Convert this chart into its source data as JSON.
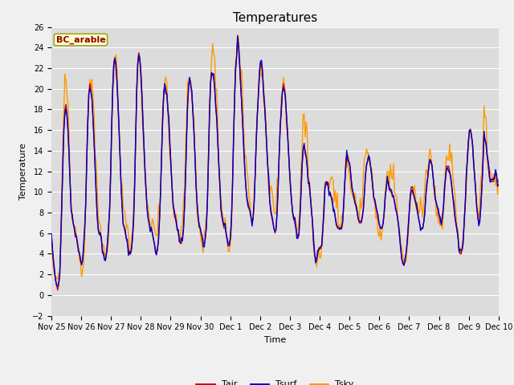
{
  "title": "Temperatures",
  "xlabel": "Time",
  "ylabel": "Temperature",
  "ylim": [
    -2,
    26
  ],
  "yticks": [
    -2,
    0,
    2,
    4,
    6,
    8,
    10,
    12,
    14,
    16,
    18,
    20,
    22,
    24,
    26
  ],
  "xtick_labels": [
    "Nov 25",
    "Nov 26",
    "Nov 27",
    "Nov 28",
    "Nov 29",
    "Nov 30",
    "Dec 1",
    "Dec 2",
    "Dec 3",
    "Dec 4",
    "Dec 5",
    "Dec 6",
    "Dec 7",
    "Dec 8",
    "Dec 9",
    "Dec 10"
  ],
  "legend_entries": [
    "Tair",
    "Tsurf",
    "Tsky"
  ],
  "legend_colors": [
    "#cc0000",
    "#0000cc",
    "#ff9900"
  ],
  "site_label": "BC_arable",
  "site_label_color": "#8b0000",
  "site_label_bg": "#ffffcc",
  "site_label_edge": "#999900",
  "plot_bg": "#dcdcdc",
  "fig_bg": "#f0f0f0",
  "grid_color": "#ffffff",
  "line_width": 1.0,
  "title_fontsize": 11,
  "axis_label_fontsize": 8,
  "tick_fontsize": 7,
  "legend_fontsize": 8,
  "site_fontsize": 8,
  "tair": [
    5.8,
    4.5,
    3.2,
    2.1,
    1.5,
    1.0,
    0.5,
    1.0,
    2.0,
    5.0,
    9.0,
    13.0,
    16.0,
    18.0,
    18.5,
    17.5,
    16.0,
    13.5,
    11.0,
    8.5,
    7.5,
    7.0,
    6.5,
    6.0,
    5.8,
    5.0,
    4.5,
    4.0,
    3.5,
    3.0,
    3.5,
    4.5,
    6.5,
    9.0,
    13.0,
    17.0,
    19.5,
    20.5,
    20.0,
    19.0,
    17.0,
    15.0,
    12.5,
    10.0,
    8.0,
    6.5,
    6.0,
    5.8,
    5.5,
    4.5,
    4.0,
    3.5,
    3.5,
    4.0,
    5.0,
    6.5,
    8.5,
    12.0,
    16.5,
    20.0,
    22.5,
    23.0,
    22.5,
    21.0,
    18.5,
    16.0,
    13.5,
    10.5,
    8.5,
    7.0,
    6.5,
    6.0,
    5.5,
    5.0,
    4.5,
    4.0,
    4.0,
    4.5,
    5.5,
    7.5,
    10.5,
    15.0,
    19.5,
    22.5,
    23.5,
    23.0,
    21.5,
    19.5,
    17.0,
    14.5,
    12.0,
    10.0,
    8.5,
    7.5,
    7.0,
    6.5,
    6.5,
    6.0,
    5.5,
    5.0,
    4.5,
    4.0,
    4.5,
    5.5,
    7.5,
    10.0,
    13.5,
    17.0,
    19.5,
    20.5,
    20.0,
    19.5,
    18.0,
    16.5,
    14.5,
    12.5,
    10.5,
    9.0,
    8.0,
    7.5,
    7.0,
    6.5,
    6.0,
    5.5,
    5.0,
    5.0,
    5.5,
    6.5,
    8.5,
    11.5,
    15.5,
    18.5,
    20.5,
    21.0,
    20.5,
    19.5,
    18.0,
    16.0,
    13.5,
    11.0,
    9.0,
    7.5,
    7.0,
    6.5,
    6.0,
    5.5,
    5.0,
    5.0,
    5.5,
    6.5,
    9.0,
    13.0,
    17.5,
    20.5,
    21.5,
    21.5,
    21.0,
    20.0,
    18.5,
    17.0,
    15.0,
    12.5,
    10.5,
    8.5,
    7.5,
    7.0,
    6.5,
    6.5,
    6.0,
    5.5,
    5.0,
    5.0,
    5.5,
    7.0,
    10.0,
    14.5,
    18.5,
    21.5,
    23.0,
    24.5,
    24.0,
    22.5,
    20.5,
    18.5,
    16.5,
    14.0,
    12.0,
    10.5,
    9.5,
    9.0,
    8.5,
    8.0,
    7.5,
    7.0,
    7.5,
    9.0,
    12.0,
    15.0,
    17.5,
    19.5,
    21.5,
    22.5,
    22.5,
    21.5,
    20.0,
    18.5,
    16.5,
    14.5,
    12.5,
    10.5,
    9.0,
    8.0,
    7.5,
    7.0,
    6.5,
    6.0,
    6.5,
    8.0,
    10.5,
    13.5,
    16.0,
    18.0,
    19.5,
    20.5,
    20.0,
    19.0,
    17.5,
    16.0,
    14.0,
    12.0,
    10.5,
    9.0,
    8.0,
    7.5,
    7.0,
    6.5,
    6.0,
    5.5,
    6.0,
    7.5,
    10.0,
    12.5,
    14.0,
    14.5,
    14.0,
    13.5,
    12.5,
    11.0,
    10.5,
    9.5,
    8.5,
    7.0,
    5.0,
    4.0,
    3.5,
    3.5,
    4.0,
    4.5,
    4.5,
    4.5,
    5.0,
    6.5,
    8.5,
    10.5,
    11.0,
    11.0,
    10.5,
    10.0,
    10.0,
    9.5,
    9.0,
    8.5,
    8.0,
    7.5,
    7.0,
    6.5,
    6.5,
    6.5,
    6.5,
    6.5,
    7.0,
    8.5,
    10.5,
    12.5,
    13.5,
    13.5,
    13.0,
    12.5,
    11.5,
    10.5,
    10.0,
    9.5,
    9.0,
    8.5,
    8.0,
    7.5,
    7.0,
    7.0,
    7.0,
    7.5,
    8.5,
    10.0,
    11.5,
    12.5,
    13.0,
    13.5,
    13.0,
    12.5,
    11.5,
    10.5,
    9.5,
    9.0,
    8.5,
    8.0,
    7.5,
    7.0,
    6.5,
    6.5,
    6.5,
    7.0,
    8.0,
    9.5,
    10.5,
    11.0,
    11.0,
    10.5,
    10.0,
    10.0,
    9.5,
    9.5,
    9.0,
    8.5,
    8.0,
    7.5,
    6.5,
    5.5,
    4.5,
    3.5,
    3.0,
    3.0,
    3.5,
    4.0,
    5.0,
    6.5,
    8.0,
    9.5,
    10.5,
    10.5,
    10.0,
    9.5,
    9.0,
    8.5,
    8.0,
    7.5,
    7.0,
    6.5,
    6.5,
    6.5,
    7.0,
    8.0,
    9.5,
    10.5,
    11.5,
    12.5,
    13.0,
    13.0,
    12.5,
    11.5,
    10.5,
    9.5,
    9.0,
    8.5,
    8.0,
    7.5,
    7.0,
    7.0,
    7.5,
    8.5,
    10.0,
    11.5,
    12.5,
    12.5,
    12.5,
    12.0,
    11.5,
    10.5,
    9.5,
    8.5,
    7.5,
    7.0,
    6.5,
    5.5,
    4.5,
    4.0,
    4.0,
    4.5,
    5.5,
    7.0,
    9.0,
    11.5,
    13.5,
    15.0,
    16.0,
    16.0,
    15.5,
    14.5,
    13.0,
    11.5,
    10.0,
    8.5,
    7.5,
    7.0,
    7.5,
    8.5,
    10.5,
    13.0,
    15.5,
    15.0,
    14.5,
    13.5,
    12.5,
    11.5,
    11.0,
    11.0,
    11.0,
    11.0,
    11.5,
    12.0,
    11.5,
    11.0,
    11.0
  ]
}
